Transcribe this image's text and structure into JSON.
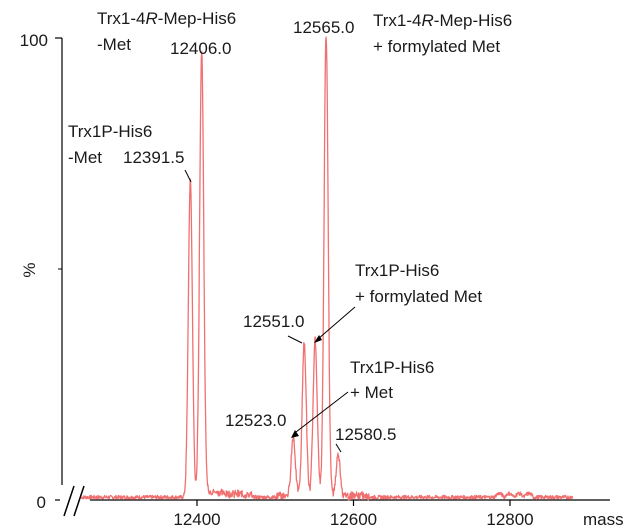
{
  "chart_data": {
    "type": "line",
    "xlabel": "mass",
    "ylabel": "%",
    "xlim": [
      12250,
      12900
    ],
    "ylim": [
      0,
      100
    ],
    "x_ticks": [
      12400,
      12600,
      12800
    ],
    "x_tick_labels": [
      "12400",
      "12600",
      "12800"
    ],
    "y_ticks": [
      0,
      100
    ],
    "y_tick_labels": [
      "0",
      "100"
    ],
    "y_mid_marker": 50,
    "axis_break": true,
    "grid": false,
    "line_color": "#f07070",
    "series": [
      {
        "name": "",
        "peaks": [
          {
            "x": 12391.5,
            "y": 69,
            "label": "12391.5"
          },
          {
            "x": 12406.0,
            "y": 95,
            "label": "12406.0"
          },
          {
            "x": 12523.0,
            "y": 13,
            "label": "12523.0"
          },
          {
            "x": 12537.0,
            "y": 33,
            "label": ""
          },
          {
            "x": 12551.0,
            "y": 34,
            "label": "12551.0"
          },
          {
            "x": 12565.0,
            "y": 100,
            "label": "12565.0"
          },
          {
            "x": 12580.5,
            "y": 9,
            "label": "12580.5"
          }
        ]
      }
    ],
    "annotations": [
      {
        "lines": [
          "Trx1-4",
          "-Mep-His6",
          "-Met"
        ],
        "italic_R": true,
        "target": "12406.0"
      },
      {
        "lines": [
          "Trx1-4",
          "-Mep-His6",
          "+ formylated Met"
        ],
        "italic_R": true,
        "target": "12565.0"
      },
      {
        "lines": [
          "Trx1P-His6",
          "-Met"
        ],
        "target": "12391.5"
      },
      {
        "lines": [
          "Trx1P-His6",
          "+ formylated Met"
        ],
        "target": "12551.0"
      },
      {
        "lines": [
          "Trx1P-His6",
          "+ Met"
        ],
        "target": "12523.0"
      }
    ]
  }
}
